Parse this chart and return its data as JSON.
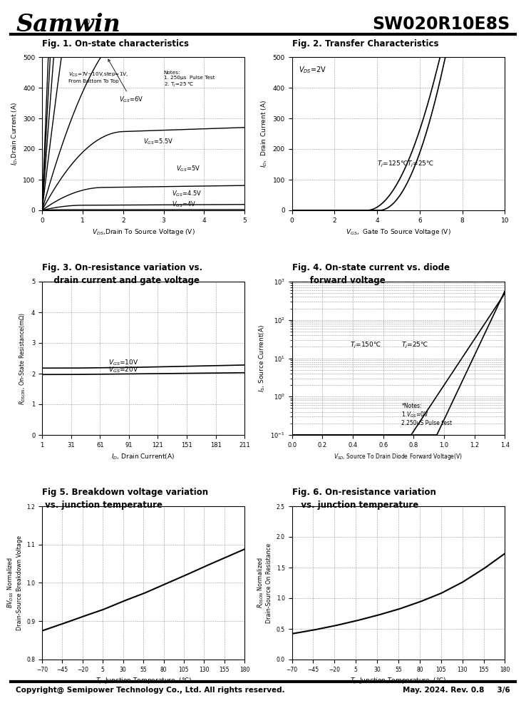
{
  "title_left": "Samwin",
  "title_right": "SW020R10E8S",
  "fig1_title": "Fig. 1. On-state characteristics",
  "fig2_title": "Fig. 2. Transfer Characteristics",
  "fig3_title_line1": "Fig. 3. On-resistance variation vs.",
  "fig3_title_line2": "    drain current and gate voltage",
  "fig4_title_line1": "Fig. 4. On-state current vs. diode",
  "fig4_title_line2": "      forward voltage",
  "fig5_title_line1": "Fig 5. Breakdown voltage variation",
  "fig5_title_line2": " vs. junction temperature",
  "fig6_title_line1": "Fig. 6. On-resistance variation",
  "fig6_title_line2": "   vs. junction temperature",
  "footer_left": "Copyright@ Semipower Technology Co., Ltd. All rights reserved.",
  "footer_right": "May. 2024. Rev. 0.8     3/6",
  "fig1_xlabel": "VDS,Drain To Source Voltage (V)",
  "fig1_ylabel": "ID,Drain Current (A)",
  "fig2_xlabel": "VGS, Gate To Source Voltage (V)",
  "fig2_ylabel": "ID, Drain Current (A)",
  "fig3_xlabel": "ID, Drain Current(A)",
  "fig3_ylabel": "RDSON, On-State Resistance(mOhm)",
  "fig4_xlabel": "VSD, Source To Drain Diode Forward Voltage(V)",
  "fig4_ylabel": "Is, Source Current(A)",
  "fig5_xlabel": "Tj Junction Temperature  (C)",
  "fig5_ylabel": "BVDSS Normalized\nDrain-Source Breakdown Voltage",
  "fig6_xlabel": "Tj Junction Temperature  (C)",
  "fig6_ylabel": "RDSON Normalized\nDrain-Source On Resistance",
  "background_color": "#ffffff",
  "grid_color": "#999999",
  "line_color": "#000000"
}
